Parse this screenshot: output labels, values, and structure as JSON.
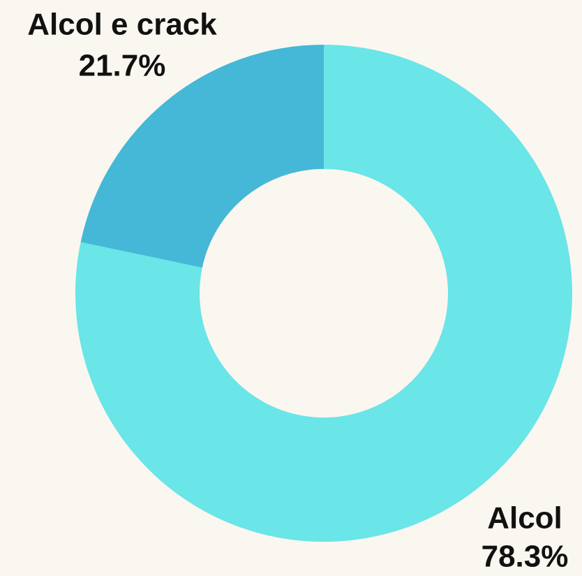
{
  "chart_data": {
    "type": "donut",
    "categories": [
      "Alcol",
      "Alcol e crack"
    ],
    "values": [
      78.3,
      21.7
    ],
    "value_labels": [
      "78.3%",
      "21.7%"
    ],
    "colors": [
      "#6ae5e8",
      "#44b8d6"
    ]
  }
}
